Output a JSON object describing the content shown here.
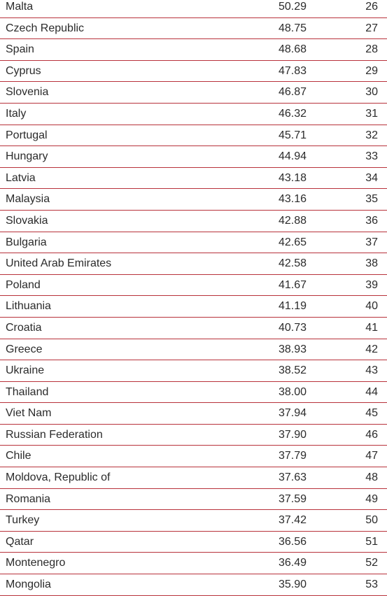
{
  "table": {
    "rows": [
      {
        "country": "Malta",
        "score": "50.29",
        "rank": "26"
      },
      {
        "country": "Czech Republic",
        "score": "48.75",
        "rank": "27"
      },
      {
        "country": "Spain",
        "score": "48.68",
        "rank": "28"
      },
      {
        "country": "Cyprus",
        "score": "47.83",
        "rank": "29"
      },
      {
        "country": "Slovenia",
        "score": "46.87",
        "rank": "30"
      },
      {
        "country": "Italy",
        "score": "46.32",
        "rank": "31"
      },
      {
        "country": "Portugal",
        "score": "45.71",
        "rank": "32"
      },
      {
        "country": "Hungary",
        "score": "44.94",
        "rank": "33"
      },
      {
        "country": "Latvia",
        "score": "43.18",
        "rank": "34"
      },
      {
        "country": "Malaysia",
        "score": "43.16",
        "rank": "35"
      },
      {
        "country": "Slovakia",
        "score": "42.88",
        "rank": "36"
      },
      {
        "country": "Bulgaria",
        "score": "42.65",
        "rank": "37"
      },
      {
        "country": "United Arab Emirates",
        "score": "42.58",
        "rank": "38"
      },
      {
        "country": "Poland",
        "score": "41.67",
        "rank": "39"
      },
      {
        "country": "Lithuania",
        "score": "41.19",
        "rank": "40"
      },
      {
        "country": "Croatia",
        "score": "40.73",
        "rank": "41"
      },
      {
        "country": "Greece",
        "score": "38.93",
        "rank": "42"
      },
      {
        "country": "Ukraine",
        "score": "38.52",
        "rank": "43"
      },
      {
        "country": "Thailand",
        "score": "38.00",
        "rank": "44"
      },
      {
        "country": "Viet Nam",
        "score": "37.94",
        "rank": "45"
      },
      {
        "country": "Russian Federation",
        "score": "37.90",
        "rank": "46"
      },
      {
        "country": "Chile",
        "score": "37.79",
        "rank": "47"
      },
      {
        "country": "Moldova, Republic of",
        "score": "37.63",
        "rank": "48"
      },
      {
        "country": "Romania",
        "score": "37.59",
        "rank": "49"
      },
      {
        "country": "Turkey",
        "score": "37.42",
        "rank": "50"
      },
      {
        "country": "Qatar",
        "score": "36.56",
        "rank": "51"
      },
      {
        "country": "Montenegro",
        "score": "36.49",
        "rank": "52"
      },
      {
        "country": "Mongolia",
        "score": "35.90",
        "rank": "53"
      }
    ]
  },
  "colors": {
    "divider": "#b8323b",
    "text": "#2b2b2b"
  }
}
